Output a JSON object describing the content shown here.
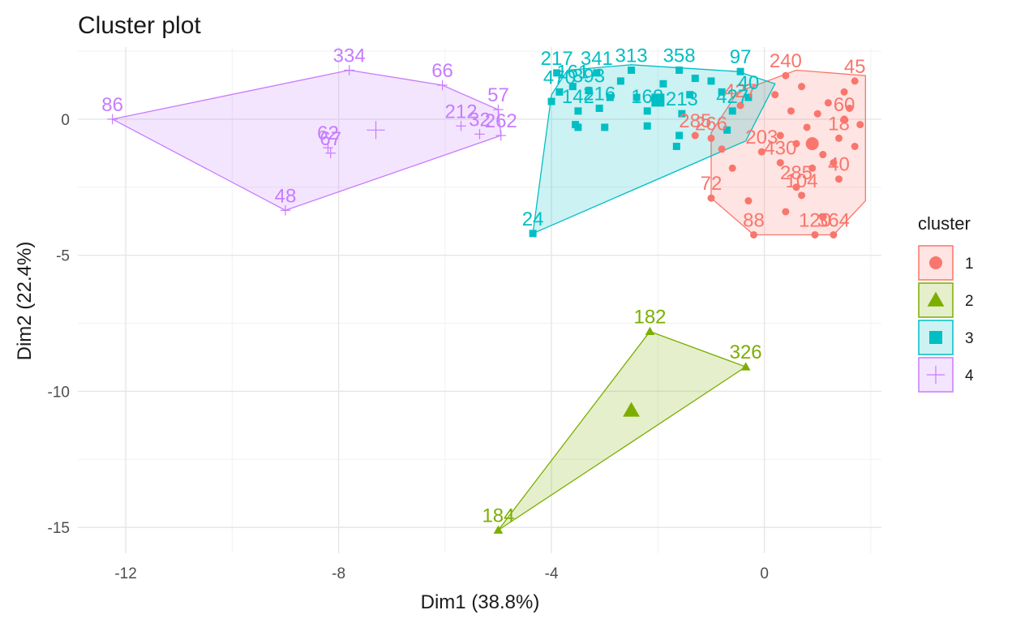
{
  "chart_data": {
    "type": "scatter",
    "title": "Cluster plot",
    "xlabel": "Dim1 (38.8%)",
    "ylabel": "Dim2 (22.4%)",
    "xlim": [
      -12.9,
      2.2
    ],
    "ylim": [
      -15.95,
      2.65
    ],
    "x_ticks": [
      -12,
      -8,
      -4,
      0
    ],
    "y_ticks": [
      0,
      -5,
      -10,
      -15
    ],
    "x_tick_labels": [
      "-12",
      "-8",
      "-4",
      "0"
    ],
    "y_tick_labels": [
      "0",
      "-5",
      "-10",
      "-15"
    ],
    "grid": true,
    "legend_title": "cluster",
    "legend_position": "right",
    "series": [
      {
        "name": "1",
        "color": "#F8766D",
        "shape": "circle",
        "hull": [
          [
            -1.0,
            -2.9
          ],
          [
            -0.2,
            -4.25
          ],
          [
            1.3,
            -4.25
          ],
          [
            1.9,
            -3.0
          ],
          [
            1.9,
            1.6
          ],
          [
            0.6,
            1.8
          ],
          [
            -0.5,
            1.0
          ],
          [
            -1.0,
            -0.5
          ]
        ],
        "centroid": [
          0.9,
          -0.9
        ],
        "points": [
          {
            "x": -1.0,
            "y": -2.9,
            "label": "72"
          },
          {
            "x": -0.2,
            "y": -4.25,
            "label": "88"
          },
          {
            "x": 0.95,
            "y": -4.25,
            "label": "120"
          },
          {
            "x": 1.3,
            "y": -4.25,
            "label": "364"
          },
          {
            "x": 1.4,
            "y": -2.2,
            "label": "40"
          },
          {
            "x": 0.6,
            "y": -2.5,
            "label": "285"
          },
          {
            "x": 0.3,
            "y": -1.6,
            "label": "430"
          },
          {
            "x": -0.05,
            "y": -1.2,
            "label": "203"
          },
          {
            "x": -1.0,
            "y": -0.7,
            "label": "266"
          },
          {
            "x": -1.3,
            "y": -0.6,
            "label": "285"
          },
          {
            "x": -0.45,
            "y": 0.5,
            "label": "427"
          },
          {
            "x": 0.7,
            "y": -2.8,
            "label": "104"
          },
          {
            "x": 1.5,
            "y": 0.0,
            "label": "60"
          },
          {
            "x": 1.4,
            "y": -0.7,
            "label": "18"
          },
          {
            "x": 1.7,
            "y": 1.4,
            "label": "45"
          },
          {
            "x": 0.4,
            "y": 1.6,
            "label": "240"
          },
          {
            "x": 0.3,
            "y": -0.6,
            "label": ""
          },
          {
            "x": 0.6,
            "y": -0.9,
            "label": ""
          },
          {
            "x": 0.8,
            "y": -0.3,
            "label": ""
          },
          {
            "x": 1.0,
            "y": 0.2,
            "label": ""
          },
          {
            "x": 1.2,
            "y": 0.6,
            "label": ""
          },
          {
            "x": 1.5,
            "y": 1.0,
            "label": ""
          },
          {
            "x": 1.6,
            "y": 0.4,
            "label": ""
          },
          {
            "x": 1.1,
            "y": -1.3,
            "label": ""
          },
          {
            "x": 0.9,
            "y": -1.8,
            "label": ""
          },
          {
            "x": 1.3,
            "y": -1.6,
            "label": ""
          },
          {
            "x": 0.5,
            "y": 0.3,
            "label": ""
          },
          {
            "x": 0.2,
            "y": 0.9,
            "label": ""
          },
          {
            "x": 0.7,
            "y": 1.2,
            "label": ""
          },
          {
            "x": -0.3,
            "y": -3.0,
            "label": ""
          },
          {
            "x": 0.4,
            "y": -3.4,
            "label": ""
          },
          {
            "x": 1.1,
            "y": -3.6,
            "label": ""
          },
          {
            "x": -0.6,
            "y": -1.8,
            "label": ""
          },
          {
            "x": -0.8,
            "y": -1.1,
            "label": ""
          },
          {
            "x": 1.8,
            "y": -0.2,
            "label": ""
          },
          {
            "x": 1.7,
            "y": -1.0,
            "label": ""
          }
        ]
      },
      {
        "name": "2",
        "color": "#7CAE00",
        "shape": "triangle",
        "hull": [
          [
            -2.15,
            -7.8
          ],
          [
            -0.35,
            -9.1
          ],
          [
            -5.0,
            -15.1
          ]
        ],
        "centroid": [
          -2.5,
          -10.7
        ],
        "points": [
          {
            "x": -2.15,
            "y": -7.8,
            "label": "182"
          },
          {
            "x": -0.35,
            "y": -9.1,
            "label": "326"
          },
          {
            "x": -5.0,
            "y": -15.1,
            "label": "184"
          }
        ]
      },
      {
        "name": "3",
        "color": "#00BFC4",
        "shape": "square",
        "hull": [
          [
            -4.35,
            -4.2
          ],
          [
            -0.35,
            -0.8
          ],
          [
            0.2,
            1.3
          ],
          [
            -0.5,
            1.75
          ],
          [
            -2.5,
            2.0
          ],
          [
            -3.7,
            1.8
          ],
          [
            -4.0,
            0.9
          ]
        ],
        "centroid": [
          -2.0,
          0.7
        ],
        "points": [
          {
            "x": -4.35,
            "y": -4.2,
            "label": "24"
          },
          {
            "x": -3.9,
            "y": 1.7,
            "label": "217"
          },
          {
            "x": -3.15,
            "y": 1.7,
            "label": "341"
          },
          {
            "x": -2.5,
            "y": 1.8,
            "label": "313"
          },
          {
            "x": -1.6,
            "y": 1.8,
            "label": "358"
          },
          {
            "x": -0.45,
            "y": 1.75,
            "label": "97"
          },
          {
            "x": -3.85,
            "y": 1.0,
            "label": "470"
          },
          {
            "x": -3.6,
            "y": 1.2,
            "label": "161"
          },
          {
            "x": -3.3,
            "y": 1.05,
            "label": "393"
          },
          {
            "x": -3.5,
            "y": 0.3,
            "label": "142"
          },
          {
            "x": -3.1,
            "y": 0.4,
            "label": "216"
          },
          {
            "x": -2.2,
            "y": 0.3,
            "label": "168"
          },
          {
            "x": -1.55,
            "y": 0.2,
            "label": "213"
          },
          {
            "x": -0.6,
            "y": 0.3,
            "label": "427"
          },
          {
            "x": -0.3,
            "y": 0.8,
            "label": "40"
          },
          {
            "x": -1.0,
            "y": 1.4,
            "label": ""
          },
          {
            "x": -1.3,
            "y": 1.5,
            "label": ""
          },
          {
            "x": -1.9,
            "y": 1.3,
            "label": ""
          },
          {
            "x": -2.7,
            "y": 1.4,
            "label": ""
          },
          {
            "x": -2.9,
            "y": 0.8,
            "label": ""
          },
          {
            "x": -3.55,
            "y": -0.2,
            "label": ""
          },
          {
            "x": -3.5,
            "y": -0.3,
            "label": ""
          },
          {
            "x": -3.0,
            "y": -0.3,
            "label": ""
          },
          {
            "x": -2.2,
            "y": -0.25,
            "label": ""
          },
          {
            "x": -1.6,
            "y": -0.6,
            "label": ""
          },
          {
            "x": -1.65,
            "y": -1.0,
            "label": ""
          },
          {
            "x": -1.4,
            "y": 0.9,
            "label": ""
          },
          {
            "x": -0.8,
            "y": 1.0,
            "label": ""
          },
          {
            "x": -0.7,
            "y": -0.4,
            "label": ""
          },
          {
            "x": -4.0,
            "y": 0.65,
            "label": ""
          },
          {
            "x": -2.4,
            "y": 0.8,
            "label": ""
          }
        ]
      },
      {
        "name": "4",
        "color": "#C77CFF",
        "shape": "plus",
        "hull": [
          [
            -12.25,
            0.0
          ],
          [
            -7.8,
            1.8
          ],
          [
            -6.05,
            1.25
          ],
          [
            -5.0,
            0.35
          ],
          [
            -4.95,
            -0.6
          ],
          [
            -9.0,
            -3.35
          ]
        ],
        "centroid": [
          -7.3,
          -0.4
        ],
        "points": [
          {
            "x": -12.25,
            "y": 0.0,
            "label": "86"
          },
          {
            "x": -7.8,
            "y": 1.8,
            "label": "334"
          },
          {
            "x": -6.05,
            "y": 1.25,
            "label": "66"
          },
          {
            "x": -5.0,
            "y": 0.35,
            "label": "57"
          },
          {
            "x": -5.7,
            "y": -0.25,
            "label": "212"
          },
          {
            "x": -5.35,
            "y": -0.55,
            "label": "32"
          },
          {
            "x": -4.95,
            "y": -0.6,
            "label": "262"
          },
          {
            "x": -8.2,
            "y": -1.05,
            "label": "62"
          },
          {
            "x": -8.15,
            "y": -1.25,
            "label": "67"
          },
          {
            "x": -9.0,
            "y": -3.35,
            "label": "48"
          }
        ]
      }
    ]
  }
}
